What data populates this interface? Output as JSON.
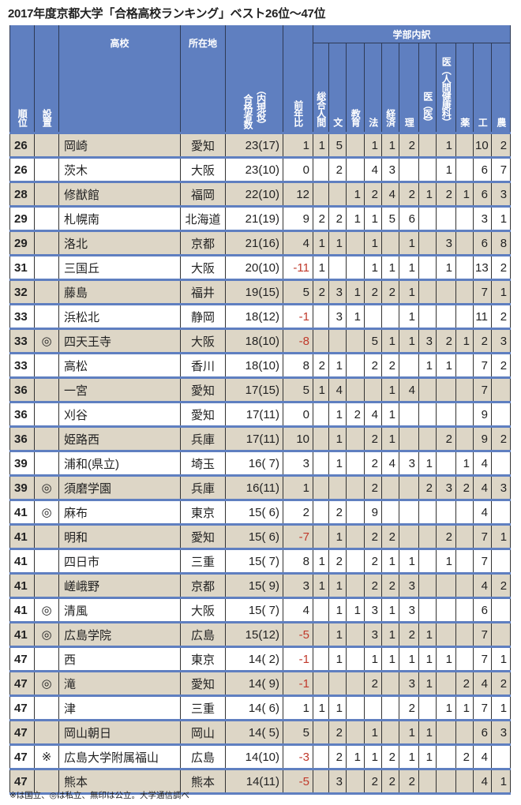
{
  "title": "2017年度京都大学「合格高校ランキング」ベスト26位～47位",
  "header": {
    "rank": "順位",
    "type": "設置",
    "school": "高校",
    "prefecture": "所在地",
    "passers": "合格者数",
    "current": "（内現役）",
    "change": "前年比",
    "faculty_group": "学部内訳",
    "faculties": [
      "総合人間",
      "文",
      "教育",
      "法",
      "経済",
      "理",
      "医（医）",
      "医（人間健康科）",
      "薬",
      "工",
      "農"
    ]
  },
  "rows": [
    {
      "rank": "26",
      "type": "",
      "school": "岡崎",
      "pref": "愛知",
      "total": "23(17)",
      "change": "1",
      "f": [
        "1",
        "5",
        "",
        "1",
        "1",
        "2",
        "",
        "1",
        "",
        "10",
        "2"
      ]
    },
    {
      "rank": "26",
      "type": "",
      "school": "茨木",
      "pref": "大阪",
      "total": "23(10)",
      "change": "0",
      "f": [
        "",
        "2",
        "",
        "4",
        "3",
        "",
        "",
        "1",
        "",
        "6",
        "7"
      ]
    },
    {
      "rank": "28",
      "type": "",
      "school": "修猷館",
      "pref": "福岡",
      "total": "22(10)",
      "change": "12",
      "f": [
        "",
        "",
        "1",
        "2",
        "4",
        "2",
        "1",
        "2",
        "1",
        "6",
        "3"
      ]
    },
    {
      "rank": "29",
      "type": "",
      "school": "札幌南",
      "pref": "北海道",
      "total": "21(19)",
      "change": "9",
      "f": [
        "2",
        "2",
        "1",
        "1",
        "5",
        "6",
        "",
        "",
        "",
        "3",
        "1"
      ]
    },
    {
      "rank": "29",
      "type": "",
      "school": "洛北",
      "pref": "京都",
      "total": "21(16)",
      "change": "4",
      "f": [
        "1",
        "1",
        "",
        "1",
        "",
        "1",
        "",
        "3",
        "",
        "6",
        "8"
      ]
    },
    {
      "rank": "31",
      "type": "",
      "school": "三国丘",
      "pref": "大阪",
      "total": "20(10)",
      "change": "-11",
      "f": [
        "1",
        "",
        "",
        "1",
        "1",
        "1",
        "",
        "1",
        "",
        "13",
        "2"
      ]
    },
    {
      "rank": "32",
      "type": "",
      "school": "藤島",
      "pref": "福井",
      "total": "19(15)",
      "change": "5",
      "f": [
        "2",
        "3",
        "1",
        "2",
        "2",
        "1",
        "",
        "",
        "",
        "7",
        "1"
      ]
    },
    {
      "rank": "33",
      "type": "",
      "school": "浜松北",
      "pref": "静岡",
      "total": "18(12)",
      "change": "-1",
      "f": [
        "",
        "3",
        "1",
        "",
        "",
        "1",
        "",
        "",
        "",
        "11",
        "2"
      ]
    },
    {
      "rank": "33",
      "type": "◎",
      "school": "四天王寺",
      "pref": "大阪",
      "total": "18(10)",
      "change": "-8",
      "f": [
        "",
        "",
        "",
        "5",
        "1",
        "1",
        "3",
        "2",
        "1",
        "2",
        "3"
      ]
    },
    {
      "rank": "33",
      "type": "",
      "school": "高松",
      "pref": "香川",
      "total": "18(10)",
      "change": "8",
      "f": [
        "2",
        "1",
        "",
        "2",
        "2",
        "",
        "1",
        "1",
        "",
        "7",
        "2"
      ]
    },
    {
      "rank": "36",
      "type": "",
      "school": "一宮",
      "pref": "愛知",
      "total": "17(15)",
      "change": "5",
      "f": [
        "1",
        "4",
        "",
        "",
        "1",
        "4",
        "",
        "",
        "",
        "7",
        ""
      ]
    },
    {
      "rank": "36",
      "type": "",
      "school": "刈谷",
      "pref": "愛知",
      "total": "17(11)",
      "change": "0",
      "f": [
        "",
        "1",
        "2",
        "4",
        "1",
        "",
        "",
        "",
        "",
        "9",
        ""
      ]
    },
    {
      "rank": "36",
      "type": "",
      "school": "姫路西",
      "pref": "兵庫",
      "total": "17(11)",
      "change": "10",
      "f": [
        "",
        "1",
        "",
        "2",
        "1",
        "",
        "",
        "2",
        "",
        "9",
        "2"
      ]
    },
    {
      "rank": "39",
      "type": "",
      "school": "浦和(県立)",
      "pref": "埼玉",
      "total": "16( 7)",
      "change": "3",
      "f": [
        "",
        "1",
        "",
        "2",
        "4",
        "3",
        "1",
        "",
        "1",
        "4",
        ""
      ]
    },
    {
      "rank": "39",
      "type": "◎",
      "school": "須磨学園",
      "pref": "兵庫",
      "total": "16(11)",
      "change": "1",
      "f": [
        "",
        "",
        "",
        "2",
        "",
        "",
        "2",
        "3",
        "2",
        "4",
        "3"
      ]
    },
    {
      "rank": "41",
      "type": "◎",
      "school": "麻布",
      "pref": "東京",
      "total": "15( 6)",
      "change": "2",
      "f": [
        "",
        "2",
        "",
        "9",
        "",
        "",
        "",
        "",
        "",
        "4",
        ""
      ]
    },
    {
      "rank": "41",
      "type": "",
      "school": "明和",
      "pref": "愛知",
      "total": "15( 6)",
      "change": "-7",
      "f": [
        "",
        "1",
        "",
        "2",
        "2",
        "",
        "",
        "2",
        "",
        "7",
        "1"
      ]
    },
    {
      "rank": "41",
      "type": "",
      "school": "四日市",
      "pref": "三重",
      "total": "15( 7)",
      "change": "8",
      "f": [
        "1",
        "2",
        "",
        "2",
        "1",
        "1",
        "",
        "1",
        "",
        "7",
        ""
      ]
    },
    {
      "rank": "41",
      "type": "",
      "school": "嵯峨野",
      "pref": "京都",
      "total": "15( 9)",
      "change": "3",
      "f": [
        "1",
        "1",
        "",
        "2",
        "2",
        "3",
        "",
        "",
        "",
        "4",
        "2"
      ]
    },
    {
      "rank": "41",
      "type": "◎",
      "school": "清風",
      "pref": "大阪",
      "total": "15( 7)",
      "change": "4",
      "f": [
        "",
        "1",
        "1",
        "3",
        "1",
        "3",
        "",
        "",
        "",
        "6",
        ""
      ]
    },
    {
      "rank": "41",
      "type": "◎",
      "school": "広島学院",
      "pref": "広島",
      "total": "15(12)",
      "change": "-5",
      "f": [
        "",
        "1",
        "",
        "3",
        "1",
        "2",
        "1",
        "",
        "",
        "7",
        ""
      ]
    },
    {
      "rank": "47",
      "type": "",
      "school": "西",
      "pref": "東京",
      "total": "14( 2)",
      "change": "-1",
      "f": [
        "",
        "1",
        "",
        "1",
        "1",
        "1",
        "1",
        "1",
        "",
        "7",
        "1"
      ]
    },
    {
      "rank": "47",
      "type": "◎",
      "school": "滝",
      "pref": "愛知",
      "total": "14( 9)",
      "change": "-1",
      "f": [
        "",
        "",
        "",
        "2",
        "",
        "3",
        "1",
        "",
        "2",
        "4",
        "2"
      ]
    },
    {
      "rank": "47",
      "type": "",
      "school": "津",
      "pref": "三重",
      "total": "14( 6)",
      "change": "1",
      "f": [
        "1",
        "1",
        "",
        "",
        "",
        "2",
        "",
        "1",
        "1",
        "7",
        "1"
      ]
    },
    {
      "rank": "47",
      "type": "",
      "school": "岡山朝日",
      "pref": "岡山",
      "total": "14( 5)",
      "change": "5",
      "f": [
        "",
        "2",
        "",
        "1",
        "",
        "1",
        "1",
        "",
        "",
        "6",
        "3"
      ]
    },
    {
      "rank": "47",
      "type": "※",
      "school": "広島大学附属福山",
      "pref": "広島",
      "total": "14(10)",
      "change": "-3",
      "f": [
        "",
        "2",
        "1",
        "1",
        "2",
        "1",
        "1",
        "",
        "2",
        "4",
        ""
      ]
    },
    {
      "rank": "47",
      "type": "",
      "school": "熊本",
      "pref": "熊本",
      "total": "14(11)",
      "change": "-5",
      "f": [
        "",
        "3",
        "",
        "2",
        "2",
        "2",
        "",
        "",
        "",
        "4",
        "1"
      ]
    }
  ],
  "footnote": "※は国立、◎は私立、無印は公立。大学通信調べ",
  "colors": {
    "header": "#5f7fc0",
    "stripe": "#ddd6c6",
    "negative": "#c0392b"
  }
}
